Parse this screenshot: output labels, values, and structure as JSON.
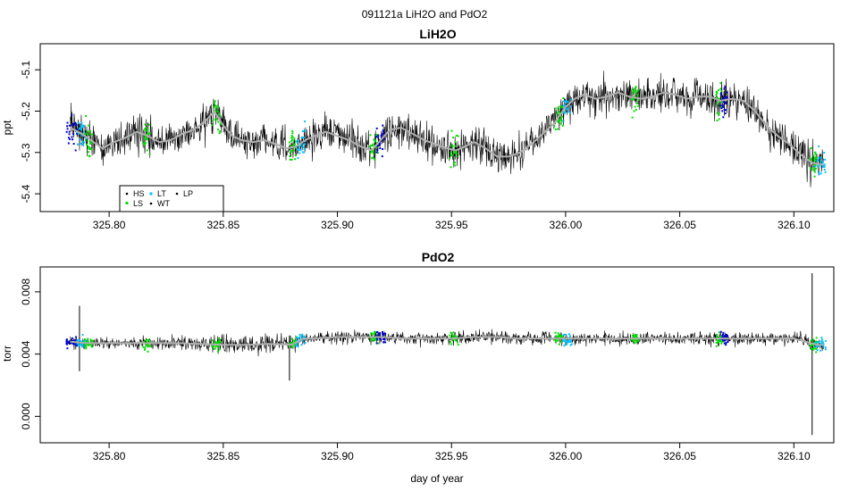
{
  "figure": {
    "suptitle": "091121a   LiH2O and PdO2",
    "xlabel": "day of year"
  },
  "colors": {
    "raw": "#000000",
    "smooth": "#b0b0b0",
    "HS": "#000000",
    "LS": "#00dd00",
    "LT": "#00c0ff",
    "WT": "#000000",
    "LP": "#0000cc"
  },
  "chart_data": [
    {
      "type": "line",
      "title": "LiH2O",
      "xlabel": "",
      "ylabel": "ppt",
      "xlim": [
        325.7698,
        326.1175
      ],
      "ylim": [
        -5.443,
        -5.037
      ],
      "xticks": [
        325.8,
        325.85,
        325.9,
        325.95,
        326.0,
        326.05,
        326.1
      ],
      "xtick_labels": [
        "325.80",
        "325.85",
        "325.90",
        "325.95",
        "326.00",
        "326.05",
        "326.10"
      ],
      "yticks": [
        -5.4,
        -5.3,
        -5.2,
        -5.1
      ],
      "ytick_labels": [
        "-5.4",
        "-5.3",
        "-5.2",
        "-5.1"
      ],
      "noise": 0.045,
      "series": [
        {
          "name": "",
          "style": "smoothed mean",
          "x": [
            325.783,
            325.788,
            325.792,
            325.797,
            325.802,
            325.807,
            325.812,
            325.817,
            325.822,
            325.827,
            325.832,
            325.837,
            325.842,
            325.846,
            325.85,
            325.854,
            325.858,
            325.863,
            325.868,
            325.873,
            325.878,
            325.882,
            325.886,
            325.89,
            325.895,
            325.9,
            325.905,
            325.91,
            325.915,
            325.919,
            325.923,
            325.928,
            325.933,
            325.938,
            325.943,
            325.948,
            325.952,
            325.956,
            325.96,
            325.965,
            325.97,
            325.975,
            325.98,
            325.985,
            325.99,
            325.995,
            326.0,
            326.004,
            326.008,
            326.013,
            326.018,
            326.023,
            326.028,
            326.033,
            326.038,
            326.043,
            326.048,
            326.053,
            326.058,
            326.063,
            326.068,
            326.073,
            326.078,
            326.083,
            326.088,
            326.093,
            326.098,
            326.103,
            326.108,
            326.113
          ],
          "values": [
            -5.24,
            -5.255,
            -5.27,
            -5.29,
            -5.275,
            -5.265,
            -5.25,
            -5.26,
            -5.275,
            -5.27,
            -5.255,
            -5.245,
            -5.225,
            -5.2,
            -5.235,
            -5.26,
            -5.27,
            -5.275,
            -5.27,
            -5.28,
            -5.29,
            -5.285,
            -5.27,
            -5.26,
            -5.25,
            -5.26,
            -5.27,
            -5.285,
            -5.295,
            -5.27,
            -5.245,
            -5.24,
            -5.255,
            -5.27,
            -5.28,
            -5.29,
            -5.295,
            -5.285,
            -5.275,
            -5.29,
            -5.31,
            -5.31,
            -5.3,
            -5.28,
            -5.255,
            -5.23,
            -5.19,
            -5.17,
            -5.16,
            -5.17,
            -5.165,
            -5.155,
            -5.165,
            -5.17,
            -5.165,
            -5.155,
            -5.16,
            -5.17,
            -5.165,
            -5.165,
            -5.175,
            -5.17,
            -5.175,
            -5.2,
            -5.235,
            -5.26,
            -5.28,
            -5.305,
            -5.325,
            -5.33
          ]
        }
      ],
      "legend": {
        "placement": "bottom-left",
        "entries": [
          "HS",
          "LT",
          "LP",
          "LS",
          "WT"
        ]
      }
    },
    {
      "type": "line",
      "title": "PdO2",
      "xlabel": "day of year",
      "ylabel": "torr",
      "xlim": [
        325.7698,
        326.1175
      ],
      "ylim": [
        -0.0017,
        0.0096
      ],
      "xticks": [
        325.8,
        325.85,
        325.9,
        325.95,
        326.0,
        326.05,
        326.1
      ],
      "xtick_labels": [
        "325.80",
        "325.85",
        "325.90",
        "325.95",
        "326.00",
        "326.05",
        "326.10"
      ],
      "yticks": [
        0.0,
        0.004,
        0.008
      ],
      "ytick_labels": [
        "0.000",
        "0.004",
        "0.008"
      ],
      "noise": 0.00045,
      "series": [
        {
          "name": "",
          "style": "smoothed mean",
          "x": [
            325.783,
            325.79,
            325.8,
            325.81,
            325.82,
            325.83,
            325.84,
            325.85,
            325.86,
            325.87,
            325.88,
            325.885,
            325.89,
            325.9,
            325.91,
            325.92,
            325.93,
            325.94,
            325.95,
            325.96,
            325.97,
            325.98,
            325.99,
            326.0,
            326.01,
            326.02,
            326.03,
            326.04,
            326.05,
            326.06,
            326.07,
            326.08,
            326.09,
            326.1,
            326.105,
            326.11,
            326.113
          ],
          "values": [
            0.0048,
            0.0047,
            0.0047,
            0.0047,
            0.0047,
            0.0047,
            0.00465,
            0.0046,
            0.0046,
            0.00465,
            0.0046,
            0.005,
            0.005,
            0.0051,
            0.0051,
            0.0051,
            0.005,
            0.005,
            0.005,
            0.0051,
            0.0051,
            0.005,
            0.005,
            0.005,
            0.005,
            0.005,
            0.005,
            0.005,
            0.005,
            0.005,
            0.005,
            0.005,
            0.005,
            0.005,
            0.0048,
            0.0046,
            0.0046
          ]
        }
      ],
      "spikes": [
        {
          "x": 326.108,
          "y_min": -0.0012,
          "y_max": 0.0092
        },
        {
          "x": 325.879,
          "y_min": 0.0023,
          "y_max": 0.0052
        },
        {
          "x": 325.787,
          "y_min": 0.0029,
          "y_max": 0.0071
        }
      ]
    }
  ]
}
